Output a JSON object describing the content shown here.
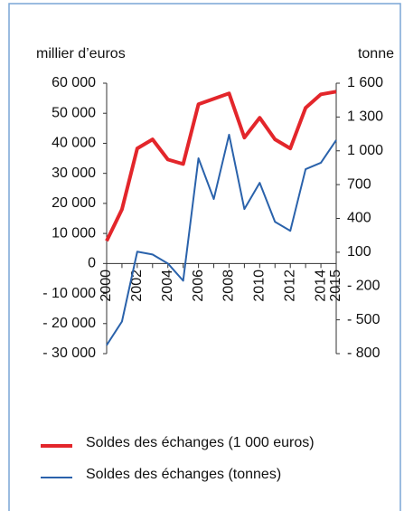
{
  "chart_data": {
    "type": "line",
    "y_label": "millier d’euros",
    "y2_label": "tonne",
    "x": [
      2000,
      2001,
      2002,
      2003,
      2004,
      2005,
      2006,
      2007,
      2008,
      2009,
      2010,
      2011,
      2012,
      2013,
      2014,
      2015
    ],
    "xlim": [
      2000,
      2015
    ],
    "xticks": [
      2000,
      2002,
      2004,
      2006,
      2008,
      2010,
      2012,
      2014,
      2015
    ],
    "ylim": [
      -30000,
      60000
    ],
    "yticks": [
      {
        "value": -30000,
        "label": "- 30 000"
      },
      {
        "value": -20000,
        "label": "- 20 000"
      },
      {
        "value": -10000,
        "label": "- 10 000"
      },
      0,
      {
        "value": 10000,
        "label": "10 000"
      },
      {
        "value": 20000,
        "label": "20 000"
      },
      {
        "value": 30000,
        "label": "30 000"
      },
      {
        "value": 40000,
        "label": "40 000"
      },
      {
        "value": 50000,
        "label": "50 000"
      },
      {
        "value": 60000,
        "label": "60 000"
      }
    ],
    "y2lim": [
      -800,
      1600
    ],
    "y2ticks": [
      {
        "value": -800,
        "label": "- 800"
      },
      {
        "value": -500,
        "label": "- 500"
      },
      {
        "value": -200,
        "label": "- 200"
      },
      100,
      400,
      700,
      {
        "value": 1000,
        "label": "1 000"
      },
      {
        "value": 1300,
        "label": "1 300"
      },
      {
        "value": 1600,
        "label": "1 600"
      }
    ],
    "series": [
      {
        "name": "Soldes des échanges (1 000 euros)",
        "color": "#e3262b",
        "values": [
          7500,
          18000,
          38300,
          41300,
          34600,
          33100,
          53000,
          54800,
          56600,
          41900,
          48500,
          41300,
          38300,
          51800,
          56300,
          57200
        ]
      },
      {
        "name": "Soldes des échanges (tonnes)",
        "color": "#2a62ab",
        "axis": "y2",
        "values": [
          -725,
          -515,
          105,
          80,
          0,
          -153,
          934,
          572,
          1143,
          483,
          716,
          370,
          290,
          837,
          894,
          1095
        ]
      }
    ]
  }
}
